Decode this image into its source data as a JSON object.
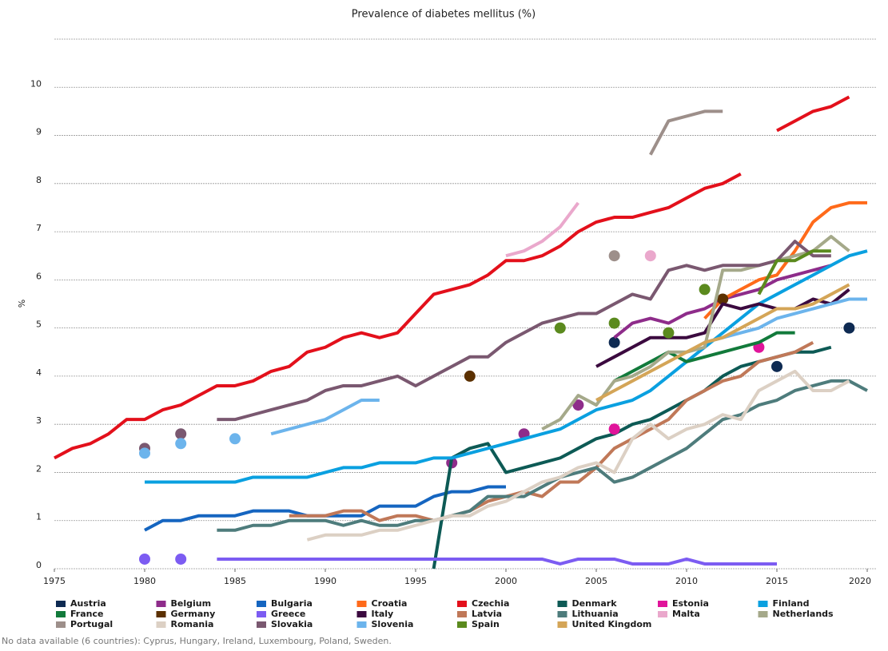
{
  "chart_data": {
    "type": "line",
    "title": "Prevalence of diabetes mellitus (%)",
    "y_label": "%",
    "footnote": "No data available (6 countries): Cyprus, Hungary, Ireland, Luxembourg, Poland, Sweden.",
    "x": [
      1975,
      1976,
      1977,
      1978,
      1979,
      1980,
      1981,
      1982,
      1983,
      1984,
      1985,
      1986,
      1987,
      1988,
      1989,
      1990,
      1991,
      1992,
      1993,
      1994,
      1995,
      1996,
      1997,
      1998,
      1999,
      2000,
      2001,
      2002,
      2003,
      2004,
      2005,
      2006,
      2007,
      2008,
      2009,
      2010,
      2011,
      2012,
      2013,
      2014,
      2015,
      2016,
      2017,
      2018,
      2019,
      2020
    ],
    "xlim": [
      1975,
      2020
    ],
    "xticks": [
      1975,
      1980,
      1985,
      1990,
      1995,
      2000,
      2005,
      2010,
      2015,
      2020
    ],
    "ylim": [
      0,
      11
    ],
    "yticks": [
      0,
      1,
      2,
      3,
      4,
      5,
      6,
      7,
      8,
      9,
      10
    ],
    "grid": true,
    "series": [
      {
        "name": "Austria",
        "color": "#0e2a52",
        "values": [
          null,
          null,
          null,
          null,
          null,
          null,
          null,
          null,
          null,
          null,
          null,
          null,
          null,
          null,
          null,
          null,
          null,
          null,
          null,
          null,
          null,
          null,
          null,
          null,
          null,
          null,
          null,
          null,
          null,
          null,
          null,
          4.7,
          null,
          null,
          null,
          null,
          null,
          null,
          null,
          null,
          4.2,
          null,
          null,
          null,
          5.0,
          null
        ]
      },
      {
        "name": "Belgium",
        "color": "#8e2c8a",
        "values": [
          null,
          null,
          null,
          null,
          null,
          null,
          null,
          null,
          null,
          null,
          null,
          null,
          null,
          null,
          null,
          null,
          null,
          null,
          null,
          null,
          null,
          null,
          2.2,
          null,
          null,
          null,
          2.8,
          null,
          null,
          3.4,
          null,
          4.8,
          5.1,
          5.2,
          5.1,
          5.3,
          5.4,
          5.6,
          5.7,
          5.8,
          6.0,
          6.1,
          6.2,
          6.3,
          null,
          null
        ]
      },
      {
        "name": "Bulgaria",
        "color": "#1565c0",
        "values": [
          null,
          null,
          null,
          null,
          null,
          0.8,
          1.0,
          1.0,
          1.1,
          1.1,
          1.1,
          1.2,
          1.2,
          1.2,
          1.1,
          1.1,
          1.1,
          1.1,
          1.3,
          1.3,
          1.3,
          1.5,
          1.6,
          1.6,
          1.7,
          1.7,
          null,
          null,
          null,
          null,
          null,
          null,
          null,
          null,
          null,
          null,
          null,
          null,
          null,
          null,
          null,
          null,
          null,
          null,
          null,
          null
        ]
      },
      {
        "name": "Croatia",
        "color": "#ff6a1a",
        "values": [
          null,
          null,
          null,
          null,
          null,
          null,
          null,
          null,
          null,
          null,
          null,
          null,
          null,
          null,
          null,
          null,
          null,
          null,
          null,
          null,
          null,
          null,
          null,
          null,
          null,
          null,
          null,
          null,
          null,
          null,
          null,
          null,
          null,
          null,
          null,
          null,
          5.2,
          5.6,
          5.8,
          6.0,
          6.1,
          6.6,
          7.2,
          7.5,
          7.6,
          7.6
        ]
      },
      {
        "name": "Czechia",
        "color": "#e3101b",
        "values": [
          2.3,
          2.5,
          2.6,
          2.8,
          3.1,
          3.1,
          3.3,
          3.4,
          3.6,
          3.8,
          3.8,
          3.9,
          4.1,
          4.2,
          4.5,
          4.6,
          4.8,
          4.9,
          4.8,
          4.9,
          5.3,
          5.7,
          5.8,
          5.9,
          6.1,
          6.4,
          6.4,
          6.5,
          6.7,
          7.0,
          7.2,
          7.3,
          7.3,
          7.4,
          7.5,
          7.7,
          7.9,
          8.0,
          8.2,
          null,
          9.1,
          9.3,
          9.5,
          9.6,
          9.8,
          null
        ]
      },
      {
        "name": "Denmark",
        "color": "#0d5a55",
        "values": [
          null,
          null,
          null,
          null,
          null,
          null,
          null,
          null,
          null,
          null,
          null,
          null,
          null,
          null,
          null,
          null,
          null,
          null,
          null,
          null,
          null,
          0,
          2.3,
          2.5,
          2.6,
          2.0,
          2.1,
          2.2,
          2.3,
          2.5,
          2.7,
          2.8,
          3.0,
          3.1,
          3.3,
          3.5,
          3.7,
          4.0,
          4.2,
          4.3,
          4.4,
          4.5,
          4.5,
          4.6,
          null,
          null
        ]
      },
      {
        "name": "Estonia",
        "color": "#e0149a",
        "values": [
          null,
          null,
          null,
          null,
          null,
          null,
          null,
          null,
          null,
          null,
          null,
          null,
          null,
          null,
          null,
          null,
          null,
          null,
          null,
          null,
          null,
          null,
          null,
          null,
          null,
          null,
          null,
          null,
          null,
          null,
          null,
          2.9,
          null,
          null,
          null,
          null,
          null,
          null,
          null,
          4.6,
          null,
          null,
          null,
          null,
          null,
          null
        ]
      },
      {
        "name": "Finland",
        "color": "#0aa0e0",
        "values": [
          null,
          null,
          null,
          null,
          null,
          1.8,
          1.8,
          1.8,
          1.8,
          1.8,
          1.8,
          1.9,
          1.9,
          1.9,
          1.9,
          2.0,
          2.1,
          2.1,
          2.2,
          2.2,
          2.2,
          2.3,
          2.3,
          2.4,
          2.5,
          2.6,
          2.7,
          2.8,
          2.9,
          3.1,
          3.3,
          3.4,
          3.5,
          3.7,
          4.0,
          4.3,
          4.6,
          4.9,
          5.2,
          5.5,
          5.7,
          5.9,
          6.1,
          6.3,
          6.5,
          6.6
        ]
      },
      {
        "name": "France",
        "color": "#127a3b",
        "values": [
          null,
          null,
          null,
          null,
          null,
          null,
          null,
          null,
          null,
          null,
          null,
          null,
          null,
          null,
          null,
          null,
          null,
          null,
          null,
          null,
          null,
          null,
          null,
          null,
          null,
          null,
          null,
          null,
          null,
          null,
          null,
          3.9,
          4.1,
          4.3,
          4.5,
          4.3,
          4.4,
          4.5,
          4.6,
          4.7,
          4.9,
          4.9,
          null,
          null,
          null,
          null
        ]
      },
      {
        "name": "Germany",
        "color": "#5b3000",
        "values": [
          null,
          null,
          null,
          null,
          null,
          null,
          null,
          null,
          null,
          null,
          null,
          null,
          null,
          null,
          null,
          null,
          null,
          null,
          null,
          null,
          null,
          null,
          null,
          4.0,
          null,
          null,
          null,
          null,
          null,
          null,
          null,
          null,
          null,
          null,
          null,
          null,
          null,
          5.6,
          null,
          null,
          null,
          null,
          null,
          null,
          null,
          null
        ]
      },
      {
        "name": "Greece",
        "color": "#7c5cf2",
        "values": [
          null,
          null,
          null,
          null,
          null,
          0.2,
          null,
          0.2,
          null,
          0.2,
          0.2,
          0.2,
          0.2,
          0.2,
          0.2,
          0.2,
          0.2,
          0.2,
          0.2,
          0.2,
          0.2,
          0.2,
          0.2,
          0.2,
          0.2,
          0.2,
          0.2,
          0.2,
          0.1,
          0.2,
          0.2,
          0.2,
          0.1,
          0.1,
          0.1,
          0.2,
          0.1,
          0.1,
          0.1,
          0.1,
          0.1,
          null,
          null,
          null,
          null,
          null
        ]
      },
      {
        "name": "Italy",
        "color": "#3b0a3f",
        "values": [
          null,
          null,
          null,
          null,
          null,
          null,
          null,
          null,
          null,
          null,
          null,
          null,
          null,
          null,
          null,
          null,
          null,
          null,
          null,
          null,
          null,
          null,
          null,
          null,
          null,
          null,
          null,
          null,
          null,
          null,
          4.2,
          4.4,
          4.6,
          4.8,
          4.8,
          4.8,
          4.9,
          5.5,
          5.4,
          5.5,
          5.4,
          5.4,
          5.6,
          5.5,
          5.8,
          null
        ]
      },
      {
        "name": "Latvia",
        "color": "#c07858",
        "values": [
          null,
          null,
          null,
          null,
          null,
          null,
          null,
          null,
          null,
          null,
          null,
          null,
          null,
          1.1,
          1.1,
          1.1,
          1.2,
          1.2,
          1.0,
          1.1,
          1.1,
          1.0,
          1.1,
          1.2,
          1.4,
          1.5,
          1.6,
          1.5,
          1.8,
          1.8,
          2.1,
          2.5,
          2.7,
          2.9,
          3.1,
          3.5,
          3.7,
          3.9,
          4.0,
          4.3,
          4.4,
          4.5,
          4.7,
          null,
          null,
          null
        ]
      },
      {
        "name": "Lithuania",
        "color": "#4e7c7c",
        "values": [
          null,
          null,
          null,
          null,
          null,
          null,
          null,
          null,
          null,
          0.8,
          0.8,
          0.9,
          0.9,
          1.0,
          1.0,
          1.0,
          0.9,
          1.0,
          0.9,
          0.9,
          1.0,
          1.0,
          1.1,
          1.2,
          1.5,
          1.5,
          1.5,
          1.7,
          1.9,
          2.0,
          2.1,
          1.8,
          1.9,
          2.1,
          2.3,
          2.5,
          2.8,
          3.1,
          3.2,
          3.4,
          3.5,
          3.7,
          3.8,
          3.9,
          3.9,
          3.7
        ]
      },
      {
        "name": "Malta",
        "color": "#eaa8cc",
        "values": [
          null,
          null,
          null,
          null,
          null,
          null,
          null,
          null,
          null,
          null,
          null,
          null,
          null,
          null,
          null,
          null,
          null,
          null,
          null,
          null,
          null,
          null,
          null,
          null,
          null,
          6.5,
          6.6,
          6.8,
          7.1,
          7.6,
          null,
          null,
          null,
          6.5,
          null,
          null,
          null,
          null,
          null,
          null,
          null,
          null,
          null,
          null,
          null,
          null
        ]
      },
      {
        "name": "Netherlands",
        "color": "#a5a98a",
        "values": [
          null,
          null,
          null,
          null,
          null,
          null,
          null,
          null,
          null,
          null,
          null,
          null,
          null,
          null,
          null,
          null,
          null,
          null,
          null,
          null,
          null,
          null,
          null,
          null,
          null,
          null,
          null,
          2.9,
          3.1,
          3.6,
          3.4,
          3.9,
          4.0,
          4.2,
          4.5,
          4.5,
          4.6,
          6.2,
          6.2,
          6.3,
          6.4,
          6.5,
          6.6,
          6.9,
          6.6,
          null
        ]
      },
      {
        "name": "Portugal",
        "color": "#9d8f8a",
        "values": [
          null,
          null,
          null,
          null,
          null,
          null,
          null,
          null,
          null,
          null,
          null,
          null,
          null,
          null,
          null,
          null,
          null,
          null,
          null,
          null,
          null,
          null,
          null,
          null,
          null,
          null,
          null,
          null,
          null,
          null,
          null,
          6.5,
          null,
          8.6,
          9.3,
          9.4,
          9.5,
          9.5,
          null,
          null,
          null,
          null,
          null,
          null,
          null,
          null
        ]
      },
      {
        "name": "Romania",
        "color": "#dcd0c4",
        "values": [
          null,
          null,
          null,
          null,
          null,
          null,
          null,
          null,
          null,
          null,
          null,
          null,
          null,
          null,
          0.6,
          0.7,
          0.7,
          0.7,
          0.8,
          0.8,
          0.9,
          1.0,
          1.1,
          1.1,
          1.3,
          1.4,
          1.6,
          1.8,
          1.9,
          2.1,
          2.2,
          2.0,
          2.7,
          3.0,
          2.7,
          2.9,
          3.0,
          3.2,
          3.1,
          3.7,
          3.9,
          4.1,
          3.7,
          3.7,
          3.9,
          null
        ]
      },
      {
        "name": "Slovakia",
        "color": "#7a5870",
        "values": [
          null,
          null,
          null,
          null,
          null,
          2.5,
          null,
          2.8,
          null,
          3.1,
          3.1,
          3.2,
          3.3,
          3.4,
          3.5,
          3.7,
          3.8,
          3.8,
          3.9,
          4.0,
          3.8,
          4.0,
          4.2,
          4.4,
          4.4,
          4.7,
          4.9,
          5.1,
          5.2,
          5.3,
          5.3,
          5.5,
          5.7,
          5.6,
          6.2,
          6.3,
          6.2,
          6.3,
          6.3,
          6.3,
          6.4,
          6.8,
          6.5,
          6.5,
          null,
          null
        ]
      },
      {
        "name": "Slovenia",
        "color": "#6cb4ec",
        "values": [
          null,
          null,
          null,
          null,
          null,
          2.4,
          null,
          2.6,
          null,
          null,
          2.7,
          null,
          2.8,
          2.9,
          3.0,
          3.1,
          3.3,
          3.5,
          3.5,
          null,
          null,
          null,
          null,
          null,
          null,
          null,
          null,
          null,
          null,
          null,
          null,
          null,
          null,
          null,
          null,
          null,
          4.7,
          4.8,
          4.9,
          5.0,
          5.2,
          5.3,
          5.4,
          5.5,
          5.6,
          5.6
        ]
      },
      {
        "name": "Spain",
        "color": "#5b8a1e",
        "values": [
          null,
          null,
          null,
          null,
          null,
          null,
          null,
          null,
          null,
          null,
          null,
          null,
          null,
          null,
          null,
          null,
          null,
          null,
          null,
          null,
          null,
          null,
          null,
          null,
          null,
          null,
          null,
          null,
          5.0,
          null,
          null,
          5.1,
          null,
          null,
          4.9,
          null,
          5.8,
          null,
          null,
          5.7,
          6.4,
          6.4,
          6.6,
          6.6,
          null,
          null
        ]
      },
      {
        "name": "United Kingdom",
        "color": "#d4a557",
        "values": [
          null,
          null,
          null,
          null,
          null,
          null,
          null,
          null,
          null,
          null,
          null,
          null,
          null,
          null,
          null,
          null,
          null,
          null,
          null,
          null,
          null,
          null,
          null,
          null,
          null,
          null,
          null,
          null,
          null,
          null,
          3.5,
          3.7,
          3.9,
          4.1,
          4.3,
          4.5,
          4.7,
          4.8,
          5.0,
          5.2,
          5.4,
          5.4,
          5.5,
          5.7,
          5.9,
          null
        ]
      }
    ]
  }
}
